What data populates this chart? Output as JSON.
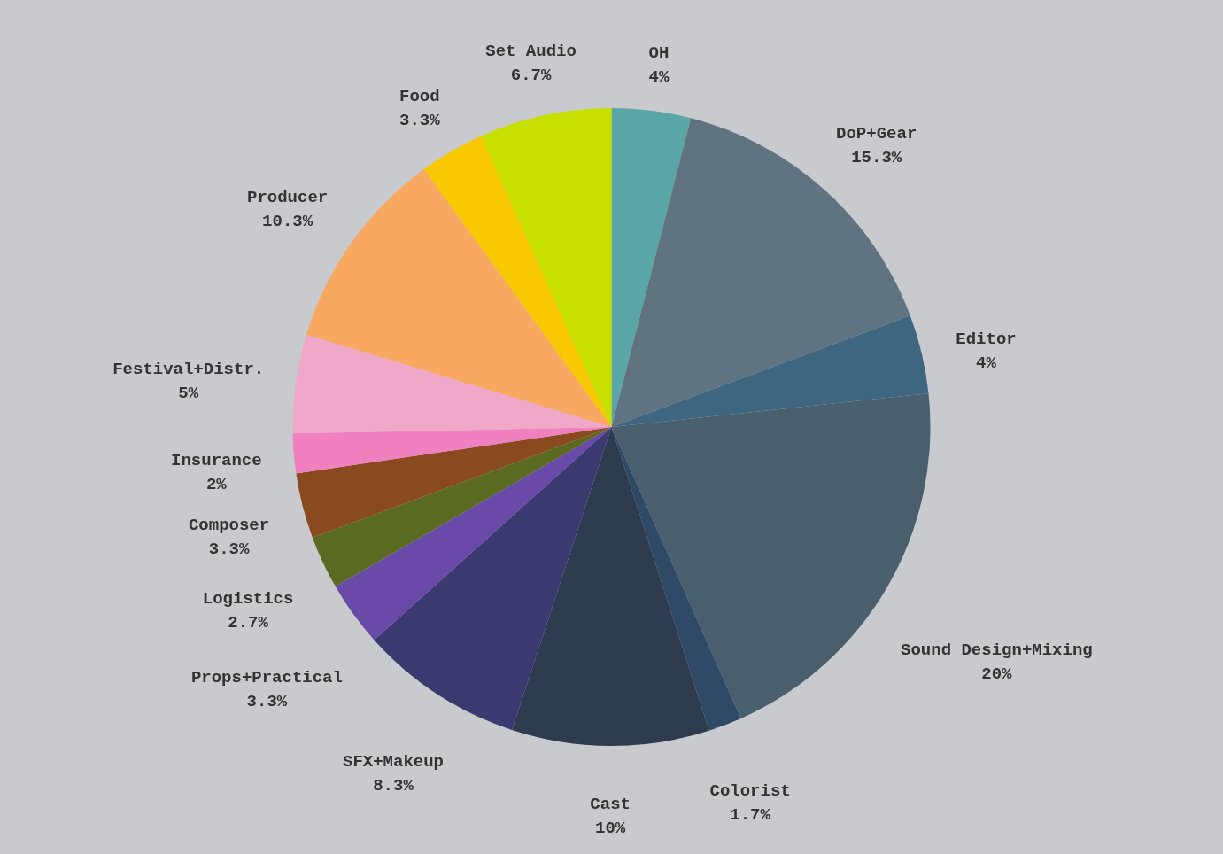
{
  "chart_data": {
    "type": "pie",
    "categories": [
      "OH",
      "DoP+Gear",
      "Editor",
      "Sound Design+Mixing",
      "Colorist",
      "Cast",
      "SFX+Makeup",
      "Props+Practical",
      "Logistics",
      "Composer",
      "Insurance",
      "Festival+Distr.",
      "Producer",
      "Food",
      "Set Audio"
    ],
    "values": [
      4,
      15.3,
      4,
      20,
      1.7,
      10,
      8.3,
      3.3,
      2.7,
      3.3,
      2,
      5,
      10.3,
      3.3,
      6.7
    ],
    "colors": [
      "#5aa5a5",
      "#5f7480",
      "#3f6680",
      "#4a5f6e",
      "#2e4a66",
      "#2e3a4e",
      "#3a3a70",
      "#6a4aa8",
      "#5a6a20",
      "#8a4a20",
      "#f080c0",
      "#f0a8c8",
      "#f8a860",
      "#f8c800",
      "#c8e000"
    ],
    "value_labels": [
      "4%",
      "15.3%",
      "4%",
      "20%",
      "1.7%",
      "10%",
      "8.3%",
      "3.3%",
      "2.7%",
      "3.3%",
      "2%",
      "5%",
      "10.3%",
      "3.3%",
      "6.7%"
    ],
    "legend": false
  }
}
